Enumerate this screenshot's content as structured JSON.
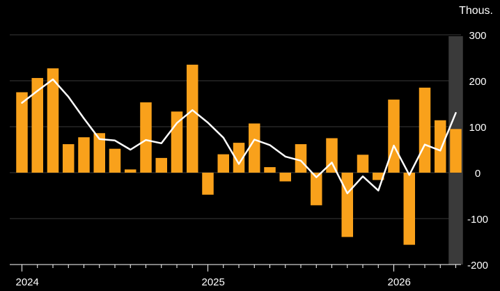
{
  "chart_data": {
    "type": "bar",
    "units_label": "Thous.",
    "ylim": [
      -200,
      300
    ],
    "yticks": [
      "300",
      "200",
      "100",
      "0",
      "-100",
      "-200"
    ],
    "ytick_values": [
      300,
      200,
      100,
      0,
      -100,
      -200
    ],
    "xtick_labels": [
      "2024",
      "2025",
      "2026"
    ],
    "xtick_month_index": [
      0,
      12,
      24
    ],
    "grid": true,
    "highlight_last_period": true,
    "colors": {
      "bars": "#F9A11B",
      "line": "#ffffff",
      "grid": "#3a3a3a",
      "background": "#000000",
      "highlight": "#3a3a3a"
    },
    "series": [
      {
        "type": "bar",
        "values": [
          175,
          206,
          227,
          62,
          77,
          86,
          52,
          7,
          153,
          32,
          133,
          235,
          -48,
          40,
          65,
          107,
          12,
          -19,
          62,
          -71,
          75,
          -140,
          39,
          -16,
          159,
          -157,
          185,
          114,
          95
        ]
      },
      {
        "type": "line",
        "values": [
          152,
          178,
          203,
          165,
          118,
          73,
          70,
          50,
          71,
          64,
          108,
          136,
          109,
          76,
          19,
          72,
          60,
          35,
          26,
          -10,
          22,
          -45,
          -8,
          -39,
          59,
          -5,
          61,
          48,
          130
        ]
      }
    ]
  }
}
